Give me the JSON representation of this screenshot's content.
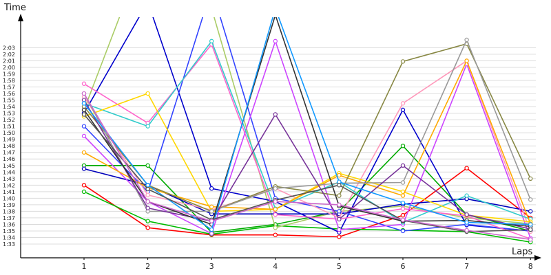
{
  "chart_data": {
    "type": "line",
    "xlabel": "Laps",
    "ylabel": "Time",
    "categories": [
      1,
      2,
      3,
      4,
      5,
      6,
      7,
      8
    ],
    "ytick_labels": [
      "1:33",
      "1:34",
      "1:35",
      "1:36",
      "1:37",
      "1:38",
      "1:39",
      "1:40",
      "1:41",
      "1:42",
      "1:43",
      "1:44",
      "1:45",
      "1:46",
      "1:47",
      "1:48",
      "1:49",
      "1:50",
      "1:51",
      "1:52",
      "1:53",
      "1:54",
      "1:55",
      "1:56",
      "1:57",
      "1:58",
      "1:59",
      "2:00",
      "2:01",
      "2:02",
      "2:03"
    ],
    "ylim_seconds": [
      93,
      123
    ],
    "grid": true,
    "series": [
      {
        "color": "#ff0000",
        "values": [
          102,
          95.5,
          94.4,
          94.4,
          94.1,
          97.4,
          104.6,
          97
        ]
      },
      {
        "color": "#00bb00",
        "values": [
          101,
          96.5,
          94.5,
          95.8,
          95.3,
          95.1,
          94.9,
          93.3
        ]
      },
      {
        "color": "#00aa00",
        "values": [
          105,
          105,
          94.8,
          96,
          98,
          108,
          97.5,
          95
        ]
      },
      {
        "color": "#aacc66",
        "values": [
          113.5,
          139,
          129,
          95.5,
          98,
          98.8,
          97,
          96.1
        ]
      },
      {
        "color": "#0000bb",
        "values": [
          104.5,
          102,
          97.6,
          97.6,
          97.6,
          99.1,
          99.9,
          98
        ]
      },
      {
        "color": "#0000cc",
        "values": [
          113,
          130,
          101.5,
          99.5,
          94.8,
          113.5,
          95.9,
          95
        ]
      },
      {
        "color": "#3344ff",
        "values": [
          111,
          101,
          132,
          100,
          98,
          95,
          96,
          95
        ]
      },
      {
        "color": "#ff66cc",
        "values": [
          117.5,
          111.5,
          123.5,
          97.5,
          96.8,
          98.4,
          97.3,
          93.8
        ]
      },
      {
        "color": "#cc44ff",
        "values": [
          109.5,
          99.5,
          94.6,
          124,
          95.2,
          96,
          120.5,
          93.9
        ]
      },
      {
        "color": "#ff99bb",
        "values": [
          115.5,
          100.5,
          98.2,
          101.5,
          97,
          114.5,
          121,
          94.9
        ]
      },
      {
        "color": "#33cccc",
        "values": [
          114.5,
          111,
          124,
          98.4,
          102.5,
          96.3,
          100.4,
          96.8
        ]
      },
      {
        "color": "#ffd700",
        "values": [
          112.5,
          116,
          98,
          98.3,
          103.8,
          101,
          97.4,
          96.4
        ]
      },
      {
        "color": "#ffaa00",
        "values": [
          107,
          101.6,
          98.7,
          98.3,
          103.5,
          100.4,
          121,
          96.1
        ]
      },
      {
        "color": "#888844",
        "values": [
          114,
          102,
          98,
          101.8,
          100.4,
          120.9,
          123.6,
          103
        ]
      },
      {
        "color": "#999999",
        "values": [
          116,
          98,
          98,
          101.5,
          102.3,
          102.4,
          124.2,
          99.8
        ]
      },
      {
        "color": "#773399",
        "values": [
          115,
          98.5,
          96.5,
          112.8,
          96.8,
          105,
          97.5,
          95.3
        ]
      },
      {
        "color": "#333333",
        "values": [
          113.5,
          99.5,
          96,
          128,
          98.8,
          96.5,
          96.6,
          95.7
        ]
      },
      {
        "color": "#1199ff",
        "values": [
          114.5,
          102,
          95.2,
          129,
          102.5,
          99.3,
          96.3,
          96
        ]
      },
      {
        "color": "#555555",
        "values": [
          112.8,
          101.4,
          96.7,
          99.7,
          102,
          96.6,
          94.9,
          95.2
        ]
      },
      {
        "color": "#cc66cc",
        "values": [
          116,
          99.5,
          96.5,
          99.5,
          99,
          96.7,
          95.1,
          93.7
        ]
      }
    ]
  }
}
